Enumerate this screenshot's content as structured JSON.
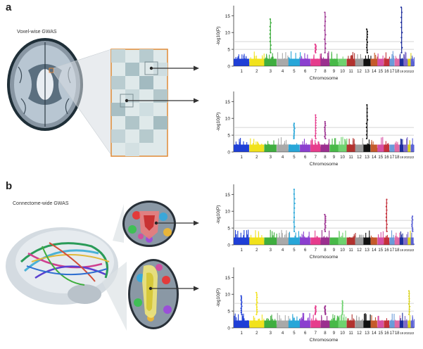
{
  "panel_a": {
    "letter": "a",
    "caption": "Voxel-wise GWAS",
    "plots": [
      {
        "id": "a1",
        "ylabel": "-log10(P)",
        "xlabel": "Chromosome",
        "yticks": [
          "0",
          "5",
          "10",
          "15"
        ],
        "peaks": [
          {
            "chrom": 3,
            "value": 14
          },
          {
            "chrom": 7,
            "value": 6.5
          },
          {
            "chrom": 8,
            "value": 16
          },
          {
            "chrom": 13,
            "value": 11
          },
          {
            "chrom": 19,
            "value": 17.5
          }
        ]
      },
      {
        "id": "a2",
        "ylabel": "-log10(P)",
        "xlabel": "Chromosome",
        "yticks": [
          "0",
          "5",
          "10",
          "15"
        ],
        "peaks": [
          {
            "chrom": 5,
            "value": 8.5
          },
          {
            "chrom": 7,
            "value": 11
          },
          {
            "chrom": 8,
            "value": 9
          },
          {
            "chrom": 13,
            "value": 14
          }
        ]
      }
    ]
  },
  "panel_b": {
    "letter": "b",
    "caption": "Connectome-wide GWAS",
    "plots": [
      {
        "id": "b1",
        "ylabel": "-log10(P)",
        "xlabel": "Chromosome",
        "yticks": [
          "0",
          "5",
          "10",
          "15"
        ],
        "peaks": [
          {
            "chrom": 5,
            "value": 16.5
          },
          {
            "chrom": 8,
            "value": 9
          },
          {
            "chrom": 16,
            "value": 13.5
          },
          {
            "chrom": 22,
            "value": 8.5
          }
        ]
      },
      {
        "id": "b2",
        "ylabel": "-log10(P)",
        "xlabel": "Chromosome",
        "yticks": [
          "0",
          "5",
          "10",
          "15"
        ],
        "peaks": [
          {
            "chrom": 1,
            "value": 9.5
          },
          {
            "chrom": 2,
            "value": 10.5
          },
          {
            "chrom": 7,
            "value": 6.5
          },
          {
            "chrom": 8,
            "value": 6.5
          },
          {
            "chrom": 10,
            "value": 8
          },
          {
            "chrom": 21,
            "value": 11
          }
        ]
      }
    ]
  },
  "chromosomes": [
    "1",
    "2",
    "3",
    "4",
    "5",
    "6",
    "7",
    "8",
    "9",
    "10",
    "11",
    "12",
    "13",
    "14",
    "15",
    "16",
    "17",
    "18",
    "19",
    "20",
    "21",
    "22"
  ],
  "chrom_colors": [
    "#1f3fd6",
    "#f1e21c",
    "#3fae3f",
    "#a9a9a9",
    "#27a6d8",
    "#8b3fcf",
    "#e63c8c",
    "#9b2f8f",
    "#48b948",
    "#6fd26f",
    "#b2322f",
    "#9b9b9b",
    "#111111",
    "#c55a2a",
    "#d64fa4",
    "#c4303a",
    "#6a9bd9",
    "#e06aa5",
    "#1c2d9c",
    "#7b68c8",
    "#d8d21b",
    "#5c63d6"
  ],
  "thresholds": [
    5,
    7.3
  ]
}
